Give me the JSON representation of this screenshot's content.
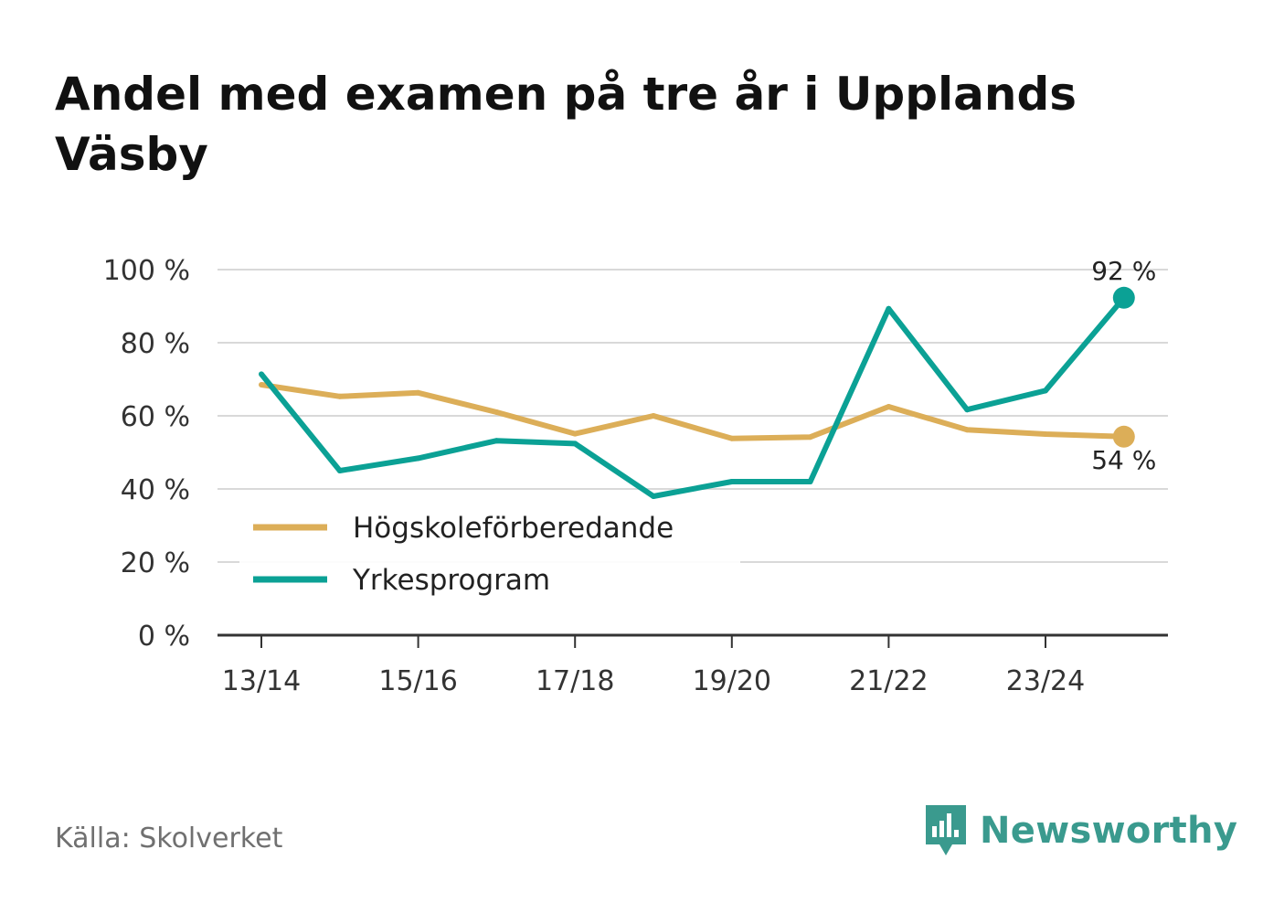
{
  "title": "Andel med examen på tre år i Upplands Väsby",
  "source": "Källa: Skolverket",
  "brand": {
    "name": "Newsworthy",
    "icon": "newsworthy-logo-icon"
  },
  "colors": {
    "hogskole": "#dcae58",
    "yrkes": "#0ba195",
    "grid": "#d9d9d9",
    "axis": "#333333",
    "text": "#333333"
  },
  "chart_data": {
    "type": "line",
    "title": "Andel med examen på tre år i Upplands Väsby",
    "xlabel": "",
    "ylabel": "",
    "x": [
      "13/14",
      "14/15",
      "15/16",
      "16/17",
      "17/18",
      "18/19",
      "19/20",
      "20/21",
      "21/22",
      "22/23",
      "23/24",
      "24/25"
    ],
    "x_tick_labels": [
      "13/14",
      "15/16",
      "17/18",
      "19/20",
      "21/22",
      "23/24"
    ],
    "ylim": [
      0,
      100
    ],
    "y_ticks": [
      0,
      20,
      40,
      60,
      80,
      100
    ],
    "y_tick_labels": [
      "0 %",
      "20 %",
      "40 %",
      "60 %",
      "80 %",
      "100 %"
    ],
    "grid": true,
    "legend_position": "bottom-left",
    "series": [
      {
        "name": "Högskoleförberedande",
        "color": "#dcae58",
        "values": [
          68.5,
          65.3,
          66.3,
          61.0,
          55.1,
          60.0,
          53.8,
          54.2,
          62.5,
          56.2,
          55.0,
          54.3
        ],
        "end_label": "54 %"
      },
      {
        "name": "Yrkesprogram",
        "color": "#0ba195",
        "values": [
          71.4,
          45.0,
          48.4,
          53.2,
          52.4,
          38.0,
          42.0,
          42.0,
          89.3,
          61.7,
          66.9,
          92.3
        ],
        "end_label": "92 %"
      }
    ]
  }
}
